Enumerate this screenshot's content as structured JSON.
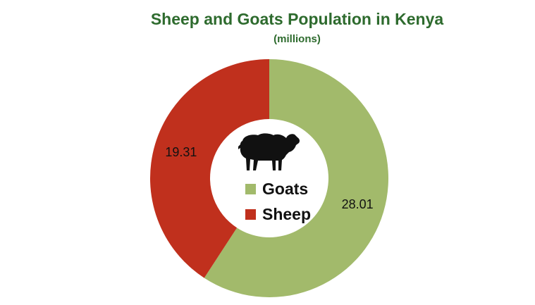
{
  "chart_data": {
    "type": "pie",
    "title": "Sheep and Goats Population in Kenya",
    "subtitle": "(millions)",
    "donut": true,
    "slices": [
      {
        "name": "Goats",
        "value": 28.01,
        "label": "28.01",
        "color": "#a2ba6b"
      },
      {
        "name": "Sheep",
        "value": 19.31,
        "label": "19.31",
        "color": "#c0301d"
      }
    ],
    "legend": {
      "placement": "center",
      "entries": [
        {
          "label": "Goats",
          "color": "#a2ba6b"
        },
        {
          "label": "Sheep",
          "color": "#c0301d"
        }
      ]
    },
    "icon": "sheep-icon"
  }
}
